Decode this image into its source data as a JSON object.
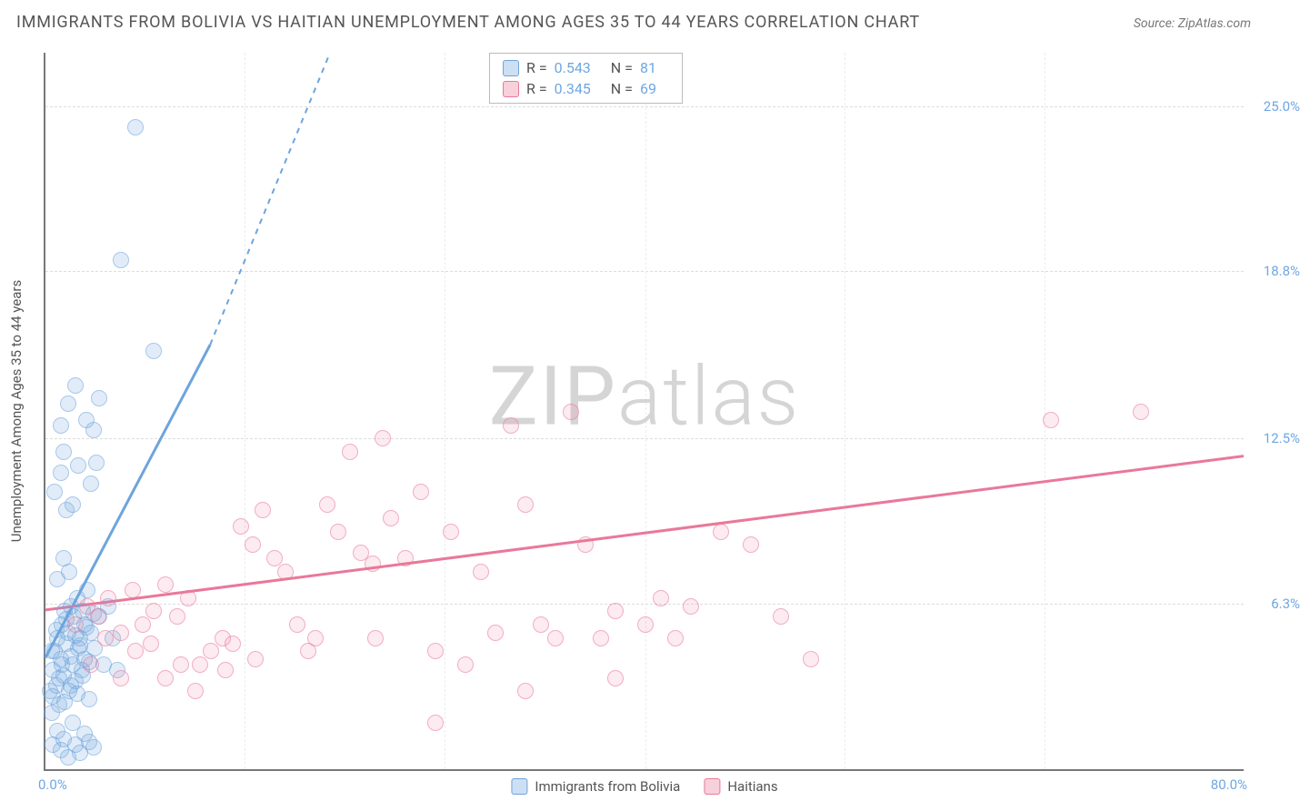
{
  "title": "IMMIGRANTS FROM BOLIVIA VS HAITIAN UNEMPLOYMENT AMONG AGES 35 TO 44 YEARS CORRELATION CHART",
  "source": "Source: ZipAtlas.com",
  "watermark_a": "ZIP",
  "watermark_b": "atlas",
  "ylabel": "Unemployment Among Ages 35 to 44 years",
  "chart": {
    "type": "scatter",
    "background_color": "#ffffff",
    "grid_color": "#dddddd",
    "axis_color": "#777777",
    "xlim": [
      0,
      80
    ],
    "ylim": [
      0,
      27
    ],
    "xlabels": {
      "min": "0.0%",
      "max": "80.0%"
    },
    "yticks": [
      {
        "v": 6.3,
        "label": "6.3%"
      },
      {
        "v": 12.5,
        "label": "12.5%"
      },
      {
        "v": 18.8,
        "label": "18.8%"
      },
      {
        "v": 25.0,
        "label": "25.0%"
      }
    ],
    "x_gridlines": [
      13.3,
      26.6,
      40,
      53.3,
      66.6
    ],
    "series": [
      {
        "name": "Immigrants from Bolivia",
        "color": "#6da4dc",
        "fill": "rgba(109,164,220,0.35)",
        "css": "blue",
        "R": "0.543",
        "N": "81",
        "trend_solid": {
          "x1": 0,
          "y1": 4.2,
          "x2": 11,
          "y2": 16.0
        },
        "trend_dash": {
          "x1": 11,
          "y1": 16.0,
          "x2": 19,
          "y2": 27.0
        },
        "points": [
          [
            0.3,
            3.0
          ],
          [
            0.4,
            2.2
          ],
          [
            0.5,
            3.8
          ],
          [
            0.6,
            4.5
          ],
          [
            0.7,
            3.2
          ],
          [
            0.8,
            5.0
          ],
          [
            0.9,
            2.5
          ],
          [
            1.0,
            4.2
          ],
          [
            1.1,
            5.5
          ],
          [
            1.2,
            3.6
          ],
          [
            1.3,
            6.0
          ],
          [
            1.4,
            4.8
          ],
          [
            1.5,
            5.2
          ],
          [
            1.6,
            3.0
          ],
          [
            1.7,
            6.2
          ],
          [
            1.8,
            4.0
          ],
          [
            1.9,
            5.8
          ],
          [
            2.0,
            3.4
          ],
          [
            2.1,
            6.5
          ],
          [
            2.2,
            4.6
          ],
          [
            2.3,
            5.0
          ],
          [
            2.4,
            3.8
          ],
          [
            2.5,
            6.0
          ],
          [
            2.6,
            4.2
          ],
          [
            2.7,
            5.4
          ],
          [
            2.8,
            6.8
          ],
          [
            0.5,
            1.0
          ],
          [
            0.8,
            1.5
          ],
          [
            1.0,
            0.8
          ],
          [
            1.2,
            1.2
          ],
          [
            1.5,
            0.5
          ],
          [
            1.8,
            1.8
          ],
          [
            2.0,
            1.0
          ],
          [
            2.3,
            0.7
          ],
          [
            2.6,
            1.4
          ],
          [
            2.9,
            1.1
          ],
          [
            3.2,
            0.9
          ],
          [
            3.0,
            5.2
          ],
          [
            3.3,
            4.6
          ],
          [
            3.6,
            5.8
          ],
          [
            3.9,
            4.0
          ],
          [
            4.2,
            6.2
          ],
          [
            4.5,
            5.0
          ],
          [
            4.8,
            3.8
          ],
          [
            0.8,
            7.2
          ],
          [
            1.2,
            8.0
          ],
          [
            1.6,
            7.5
          ],
          [
            0.6,
            10.5
          ],
          [
            1.0,
            11.2
          ],
          [
            1.4,
            9.8
          ],
          [
            1.8,
            10.0
          ],
          [
            2.2,
            11.5
          ],
          [
            2.7,
            13.2
          ],
          [
            3.2,
            12.8
          ],
          [
            3.6,
            14.0
          ],
          [
            3.0,
            10.8
          ],
          [
            3.4,
            11.6
          ],
          [
            1.0,
            13.0
          ],
          [
            1.5,
            13.8
          ],
          [
            2.0,
            14.5
          ],
          [
            1.2,
            12.0
          ],
          [
            5.0,
            19.2
          ],
          [
            7.2,
            15.8
          ],
          [
            6.0,
            24.2
          ],
          [
            0.4,
            4.5
          ],
          [
            0.7,
            5.3
          ],
          [
            1.1,
            4.0
          ],
          [
            1.4,
            5.7
          ],
          [
            1.7,
            4.3
          ],
          [
            2.0,
            5.1
          ],
          [
            2.3,
            4.7
          ],
          [
            2.6,
            5.5
          ],
          [
            2.9,
            4.1
          ],
          [
            3.2,
            5.9
          ],
          [
            0.5,
            2.8
          ],
          [
            0.9,
            3.5
          ],
          [
            1.3,
            2.6
          ],
          [
            1.7,
            3.2
          ],
          [
            2.1,
            2.9
          ],
          [
            2.5,
            3.6
          ],
          [
            2.9,
            2.7
          ]
        ]
      },
      {
        "name": "Haitians",
        "color": "#e9789a",
        "fill": "rgba(233,120,154,0.25)",
        "css": "pink",
        "R": "0.345",
        "N": "69",
        "trend_solid": {
          "x1": 0,
          "y1": 6.0,
          "x2": 80,
          "y2": 11.8
        },
        "points": [
          [
            2.0,
            5.5
          ],
          [
            2.8,
            6.2
          ],
          [
            3.5,
            5.8
          ],
          [
            4.2,
            6.5
          ],
          [
            5.0,
            5.2
          ],
          [
            5.8,
            6.8
          ],
          [
            6.5,
            5.5
          ],
          [
            7.2,
            6.0
          ],
          [
            8.0,
            7.0
          ],
          [
            8.8,
            5.8
          ],
          [
            9.5,
            6.5
          ],
          [
            10.3,
            4.0
          ],
          [
            11.0,
            4.5
          ],
          [
            11.8,
            5.0
          ],
          [
            12.5,
            4.8
          ],
          [
            13.0,
            9.2
          ],
          [
            13.8,
            8.5
          ],
          [
            14.5,
            9.8
          ],
          [
            15.3,
            8.0
          ],
          [
            16.0,
            7.5
          ],
          [
            16.8,
            5.5
          ],
          [
            17.5,
            4.5
          ],
          [
            18.0,
            5.0
          ],
          [
            18.8,
            10.0
          ],
          [
            19.5,
            9.0
          ],
          [
            20.3,
            12.0
          ],
          [
            21.0,
            8.2
          ],
          [
            21.8,
            7.8
          ],
          [
            22.5,
            12.5
          ],
          [
            23.0,
            9.5
          ],
          [
            24.0,
            8.0
          ],
          [
            25.0,
            10.5
          ],
          [
            26.0,
            4.5
          ],
          [
            27.0,
            9.0
          ],
          [
            28.0,
            4.0
          ],
          [
            29.0,
            7.5
          ],
          [
            30.0,
            5.2
          ],
          [
            31.0,
            13.0
          ],
          [
            32.0,
            10.0
          ],
          [
            33.0,
            5.5
          ],
          [
            34.0,
            5.0
          ],
          [
            35.0,
            13.5
          ],
          [
            36.0,
            8.5
          ],
          [
            37.0,
            5.0
          ],
          [
            38.0,
            6.0
          ],
          [
            40.0,
            5.5
          ],
          [
            41.0,
            6.5
          ],
          [
            42.0,
            5.0
          ],
          [
            43.0,
            6.2
          ],
          [
            45.0,
            9.0
          ],
          [
            47.0,
            8.5
          ],
          [
            49.0,
            5.8
          ],
          [
            51.0,
            4.2
          ],
          [
            26.0,
            1.8
          ],
          [
            32.0,
            3.0
          ],
          [
            38.0,
            3.5
          ],
          [
            22.0,
            5.0
          ],
          [
            8.0,
            3.5
          ],
          [
            10.0,
            3.0
          ],
          [
            12.0,
            3.8
          ],
          [
            14.0,
            4.2
          ],
          [
            6.0,
            4.5
          ],
          [
            4.0,
            5.0
          ],
          [
            3.0,
            4.0
          ],
          [
            5.0,
            3.5
          ],
          [
            7.0,
            4.8
          ],
          [
            9.0,
            4.0
          ],
          [
            73.0,
            13.5
          ],
          [
            67.0,
            13.2
          ]
        ]
      }
    ]
  }
}
